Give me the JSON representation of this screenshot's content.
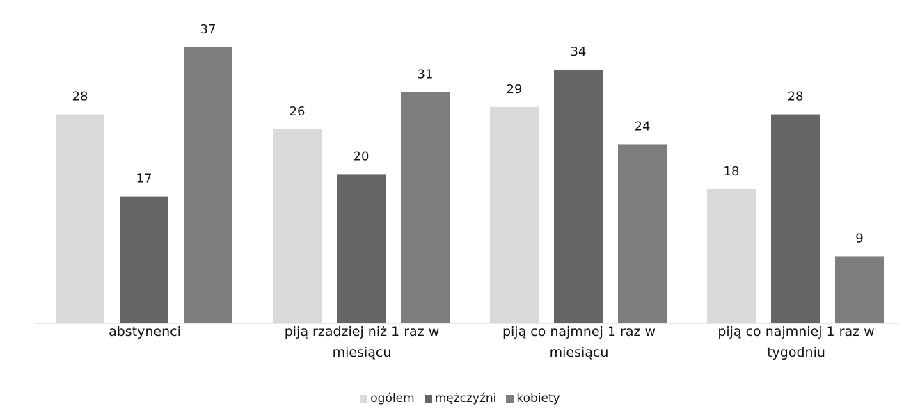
{
  "chart_data": {
    "type": "bar",
    "categories": [
      "abstynenci",
      "piją rzadziej niż 1 raz w miesiącu",
      "piją co najmnej 1 raz w miesiącu",
      "piją co najmniej 1 raz w tygodniu"
    ],
    "series": [
      {
        "name": "ogółem",
        "color": "#d9d9d9",
        "values": [
          28,
          26,
          29,
          18
        ]
      },
      {
        "name": "mężczyźni",
        "color": "#656565",
        "values": [
          17,
          20,
          34,
          28
        ]
      },
      {
        "name": "kobiety",
        "color": "#7d7d7d",
        "values": [
          37,
          31,
          24,
          9
        ]
      }
    ],
    "legend": "bottom"
  }
}
